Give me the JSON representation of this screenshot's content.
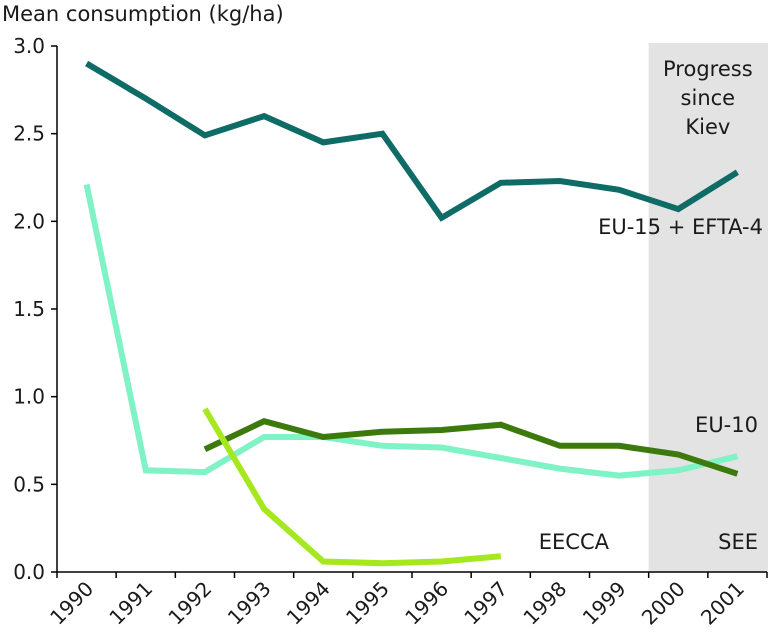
{
  "chart_data": {
    "type": "line",
    "title": "",
    "ylabel": "Mean consumption (kg/ha)",
    "xlabel": "",
    "categories": [
      "1990",
      "1991",
      "1992",
      "1993",
      "1994",
      "1995",
      "1996",
      "1997",
      "1998",
      "1999",
      "2000",
      "2001"
    ],
    "ylim": [
      0,
      3.0
    ],
    "yticks": [
      "0.0",
      "0.5",
      "1.0",
      "1.5",
      "2.0",
      "2.5",
      "3.0"
    ],
    "grid": false,
    "shaded_region": {
      "from": "1999",
      "to": "2001",
      "label_lines": [
        "Progress",
        "since",
        "Kiev"
      ],
      "color": "#e3e3e3"
    },
    "series": [
      {
        "name": "EU-15 + EFTA-4",
        "color": "#0e6b66",
        "values": [
          2.9,
          2.7,
          2.49,
          2.6,
          2.45,
          2.5,
          2.02,
          2.22,
          2.23,
          2.18,
          2.07,
          2.28
        ]
      },
      {
        "name": "SEE",
        "color": "#7ff2c6",
        "values": [
          2.21,
          0.58,
          0.57,
          0.77,
          0.77,
          0.72,
          0.71,
          0.65,
          0.59,
          0.55,
          0.58,
          0.66
        ]
      },
      {
        "name": "EU-10",
        "color": "#3d7a0e",
        "values": [
          null,
          null,
          0.7,
          0.86,
          0.77,
          0.8,
          0.81,
          0.84,
          0.72,
          0.72,
          0.67,
          0.56
        ]
      },
      {
        "name": "EECCA",
        "color": "#a6e81f",
        "values": [
          null,
          null,
          0.93,
          0.36,
          0.06,
          0.05,
          0.06,
          0.09,
          null,
          null,
          null,
          null
        ]
      }
    ]
  }
}
